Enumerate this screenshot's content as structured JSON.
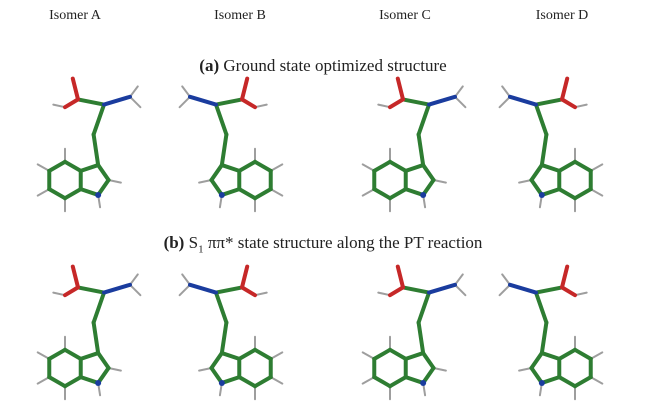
{
  "columns": [
    "Isomer A",
    "Isomer B",
    "Isomer C",
    "Isomer D"
  ],
  "panels": [
    {
      "label": "(a)",
      "text": "Ground state optimized structure"
    },
    {
      "label": "(b)",
      "state": "S",
      "subscript": "1",
      "text": "ππ* state structure along the PT reaction"
    }
  ]
}
